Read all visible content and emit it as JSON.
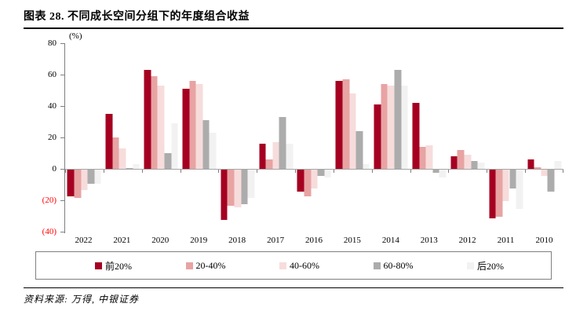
{
  "title": "图表 28. 不同成长空间分组下的年度组合收益",
  "source": "资料来源: 万得, 中银证券",
  "colors": {
    "negative_tick": "#ff0000",
    "axis": "#7f7f7f",
    "zero_line": "#a6a6a6"
  },
  "chart_data": {
    "type": "bar",
    "title": "不同成长空间分组下的年度组合收益",
    "unit_label": "(%)",
    "ylim": [
      -40,
      80
    ],
    "grid": false,
    "legend_position": "bottom",
    "yticks": [
      {
        "label": "80",
        "value": 80
      },
      {
        "label": "60",
        "value": 60
      },
      {
        "label": "40",
        "value": 40
      },
      {
        "label": "20",
        "value": 20
      },
      {
        "label": "0",
        "value": 0
      },
      {
        "label": "(20)",
        "value": -20
      },
      {
        "label": "(40)",
        "value": -40
      }
    ],
    "categories": [
      "2022",
      "2021",
      "2020",
      "2019",
      "2018",
      "2017",
      "2016",
      "2015",
      "2014",
      "2013",
      "2012",
      "2011",
      "2010"
    ],
    "series": [
      {
        "name": "前20%",
        "color": "#A50021",
        "values": [
          -17,
          35,
          63,
          51,
          -32,
          16,
          -14,
          56,
          41,
          42,
          8,
          -31,
          6
        ]
      },
      {
        "name": "20-40%",
        "color": "#E8A3A3",
        "values": [
          -18,
          20,
          59,
          56,
          -23,
          6,
          -17,
          57,
          54,
          14,
          12,
          -30,
          1
        ]
      },
      {
        "name": "40-60%",
        "color": "#F7DCDC",
        "values": [
          -13,
          13,
          53,
          54,
          -24,
          17,
          -12,
          48,
          53,
          15,
          9,
          -20,
          -4
        ]
      },
      {
        "name": "60-80%",
        "color": "#ACACAC",
        "values": [
          -9,
          0.5,
          10,
          31,
          -22,
          33,
          -4,
          24,
          63,
          -2,
          5,
          -12,
          -14
        ]
      },
      {
        "name": "后20%",
        "color": "#F3F2F2",
        "values": [
          -9,
          3,
          29,
          23,
          -18,
          16,
          -5,
          3,
          53,
          -5,
          4,
          -25,
          5
        ]
      }
    ]
  }
}
